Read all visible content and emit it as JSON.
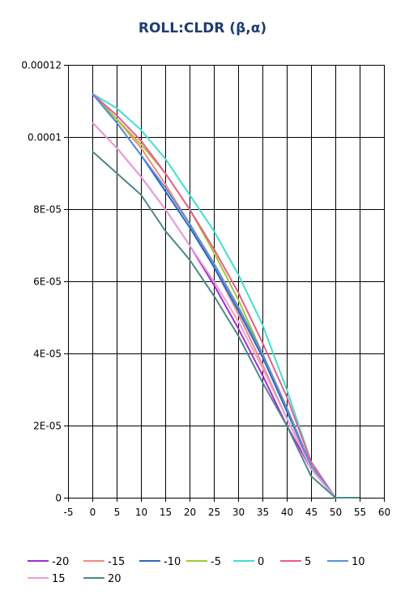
{
  "chart_data": {
    "type": "line",
    "title": "ROLL:CLDR (β,α)",
    "xlabel": "",
    "ylabel": "",
    "xlim": [
      -5,
      60
    ],
    "ylim": [
      0,
      0.00012
    ],
    "grid": true,
    "legend_position": "bottom",
    "x_ticks": [
      -5,
      0,
      5,
      10,
      15,
      20,
      25,
      30,
      35,
      40,
      45,
      50,
      55,
      60
    ],
    "x_tick_labels": [
      "-5",
      "0",
      "5",
      "10",
      "15",
      "20",
      "25",
      "30",
      "35",
      "40",
      "45",
      "50",
      "55",
      "60"
    ],
    "y_ticks": [
      0,
      2e-05,
      4e-05,
      6e-05,
      8e-05,
      0.0001,
      0.00012
    ],
    "y_tick_labels": [
      "0",
      "2E-05",
      "4E-05",
      "6E-05",
      "8E-05",
      "0.0001",
      "0.00012"
    ],
    "x": [
      0,
      5,
      10,
      15,
      20,
      25,
      30,
      35,
      40,
      45,
      50,
      55
    ],
    "series": [
      {
        "name": "-20",
        "color": "#a32ccf",
        "values": [
          0.000104,
          9.7e-05,
          8.9e-05,
          8e-05,
          7e-05,
          5.9e-05,
          4.7e-05,
          3.4e-05,
          2e-05,
          8e-06,
          0,
          0
        ]
      },
      {
        "name": "-15",
        "color": "#ef8a7e",
        "values": [
          0.000112,
          0.000105,
          9.7e-05,
          8.7e-05,
          7.6e-05,
          6.4e-05,
          5.1e-05,
          3.7e-05,
          2.2e-05,
          9e-06,
          0,
          0
        ]
      },
      {
        "name": "-10",
        "color": "#2f67b8",
        "values": [
          0.000112,
          0.000104,
          9.5e-05,
          8.5e-05,
          7.5e-05,
          6.4e-05,
          5.2e-05,
          3.9e-05,
          2.4e-05,
          9e-06,
          0,
          0
        ]
      },
      {
        "name": "-5",
        "color": "#9acd32",
        "values": [
          0.000112,
          0.000105,
          9.8e-05,
          9e-05,
          8e-05,
          6.8e-05,
          5.5e-05,
          4e-05,
          2.5e-05,
          9e-06,
          0,
          0
        ]
      },
      {
        "name": "0",
        "color": "#40e0d0",
        "values": [
          0.000112,
          0.000108,
          0.000102,
          9.4e-05,
          8.4e-05,
          7.4e-05,
          6.2e-05,
          4.8e-05,
          3e-05,
          1e-05,
          0,
          0
        ]
      },
      {
        "name": "5",
        "color": "#ee5a8e",
        "values": [
          0.000112,
          0.000106,
          9.9e-05,
          9e-05,
          8e-05,
          6.9e-05,
          5.7e-05,
          4.3e-05,
          2.8e-05,
          1e-05,
          0,
          0
        ]
      },
      {
        "name": "10",
        "color": "#5a8fe0",
        "values": [
          0.000112,
          0.000104,
          9.5e-05,
          8.6e-05,
          7.6e-05,
          6.5e-05,
          5.3e-05,
          4e-05,
          2.5e-05,
          9e-06,
          0,
          0
        ]
      },
      {
        "name": "15",
        "color": "#e8a0d8",
        "values": [
          0.000104,
          9.7e-05,
          8.9e-05,
          8e-05,
          7e-05,
          6e-05,
          4.9e-05,
          3.6e-05,
          2.2e-05,
          8e-06,
          0,
          0
        ]
      },
      {
        "name": "20",
        "color": "#4a8a8a",
        "values": [
          9.6e-05,
          9e-05,
          8.4e-05,
          7.4e-05,
          6.6e-05,
          5.6e-05,
          4.5e-05,
          3.2e-05,
          2e-05,
          6e-06,
          0,
          0
        ]
      }
    ]
  }
}
